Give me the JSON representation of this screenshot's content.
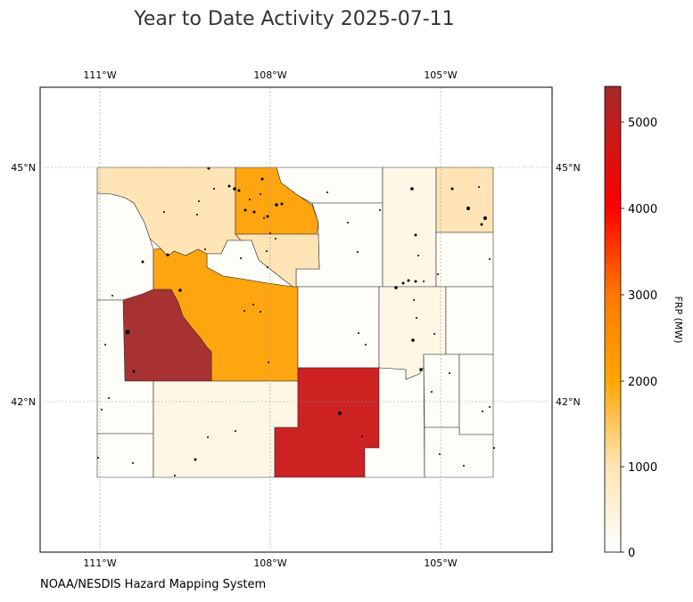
{
  "title": "Year to Date Activity 2025-07-11",
  "footer": "NOAA/NESDIS Hazard Mapping System",
  "map": {
    "lon_ticks": [
      "111°W",
      "108°W",
      "105°W"
    ],
    "lat_ticks": [
      "45°N",
      "42°N"
    ],
    "region": "Wyoming counties",
    "fire_points_color": "#000000"
  },
  "colorbar": {
    "label": "FRP (MW)",
    "ticks": [
      "0",
      "1000",
      "2000",
      "3000",
      "4000",
      "5000"
    ],
    "min": 0,
    "max": 5400,
    "colors": [
      "#ffffff",
      "#ffe4b0",
      "#ffa500",
      "#ff7a00",
      "#ff0000",
      "#a52a2a"
    ]
  },
  "legend_colors": {
    "brown": "#a83232",
    "red": "#cc2222",
    "orange": "#ffa510",
    "light_orange": "#ffe4b5",
    "pale": "#fff6e6",
    "very_pale": "#fffdf8"
  }
}
